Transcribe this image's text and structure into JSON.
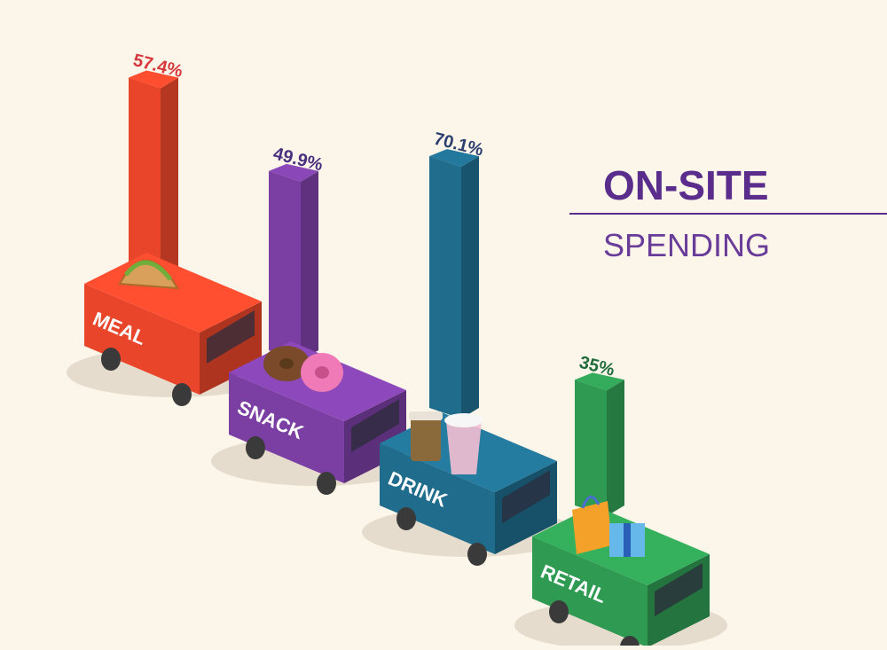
{
  "title": {
    "main": "ON-SITE",
    "sub": "SPENDING"
  },
  "chart_data": {
    "type": "bar",
    "categories": [
      "MEAL",
      "SNACK",
      "DRINK",
      "RETAIL"
    ],
    "values": [
      57.4,
      49.9,
      70.1,
      35
    ],
    "data_labels": [
      "57.4%",
      "49.9%",
      "70.1%",
      "35%"
    ],
    "colors": {
      "MEAL": "#e8452a",
      "SNACK": "#7b3fa3",
      "DRINK": "#1f6c8c",
      "RETAIL": "#2e9a52"
    },
    "label_colors": {
      "MEAL": "#d6373c",
      "SNACK": "#4b2f7f",
      "DRINK": "#2b3f6e",
      "RETAIL": "#1f6b3a"
    },
    "items_on_trucks": {
      "MEAL": "taco",
      "SNACK": "donuts",
      "DRINK": "coffee-cup and milkshake",
      "RETAIL": "shopping-bag and gift-box"
    },
    "grid": false,
    "legend": "none",
    "title": "ON-SITE SPENDING"
  }
}
